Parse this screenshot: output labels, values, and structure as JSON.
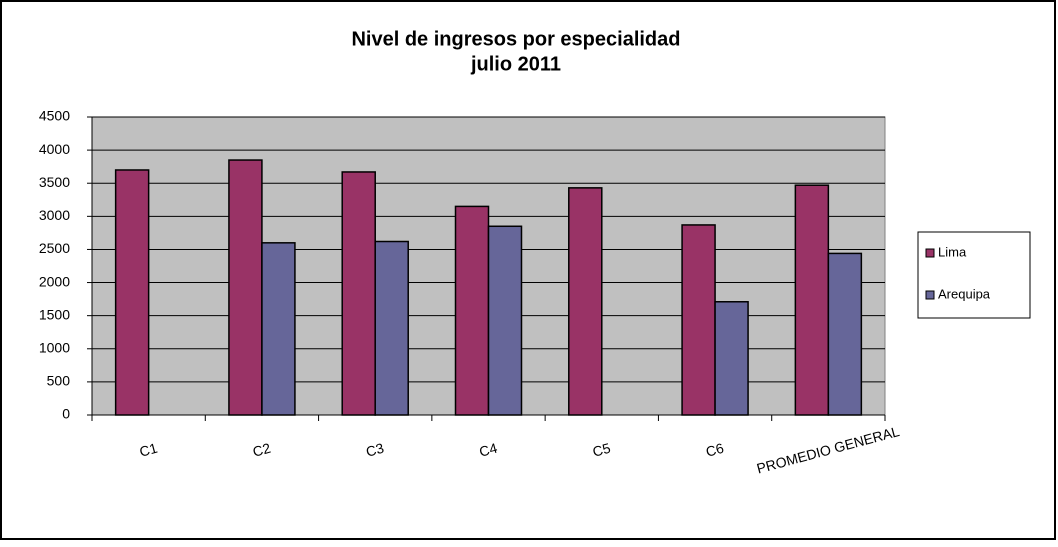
{
  "chart_data": {
    "type": "bar",
    "title": "Nivel de ingresos por especialidad",
    "subtitle": "julio 2011",
    "categories": [
      "C1",
      "C2",
      "C3",
      "C4",
      "C5",
      "C6",
      "PROMEDIO GENERAL"
    ],
    "series": [
      {
        "name": "Lima",
        "color": "#993366",
        "values": [
          3700,
          3850,
          3670,
          3150,
          3430,
          2870,
          3470
        ]
      },
      {
        "name": "Arequipa",
        "color": "#666699",
        "values": [
          null,
          2600,
          2620,
          2850,
          null,
          1710,
          2440
        ]
      }
    ],
    "ylim": [
      0,
      4500
    ],
    "yticks": [
      0,
      500,
      1000,
      1500,
      2000,
      2500,
      3000,
      3500,
      4000,
      4500
    ],
    "grid": true,
    "legend": "right"
  }
}
